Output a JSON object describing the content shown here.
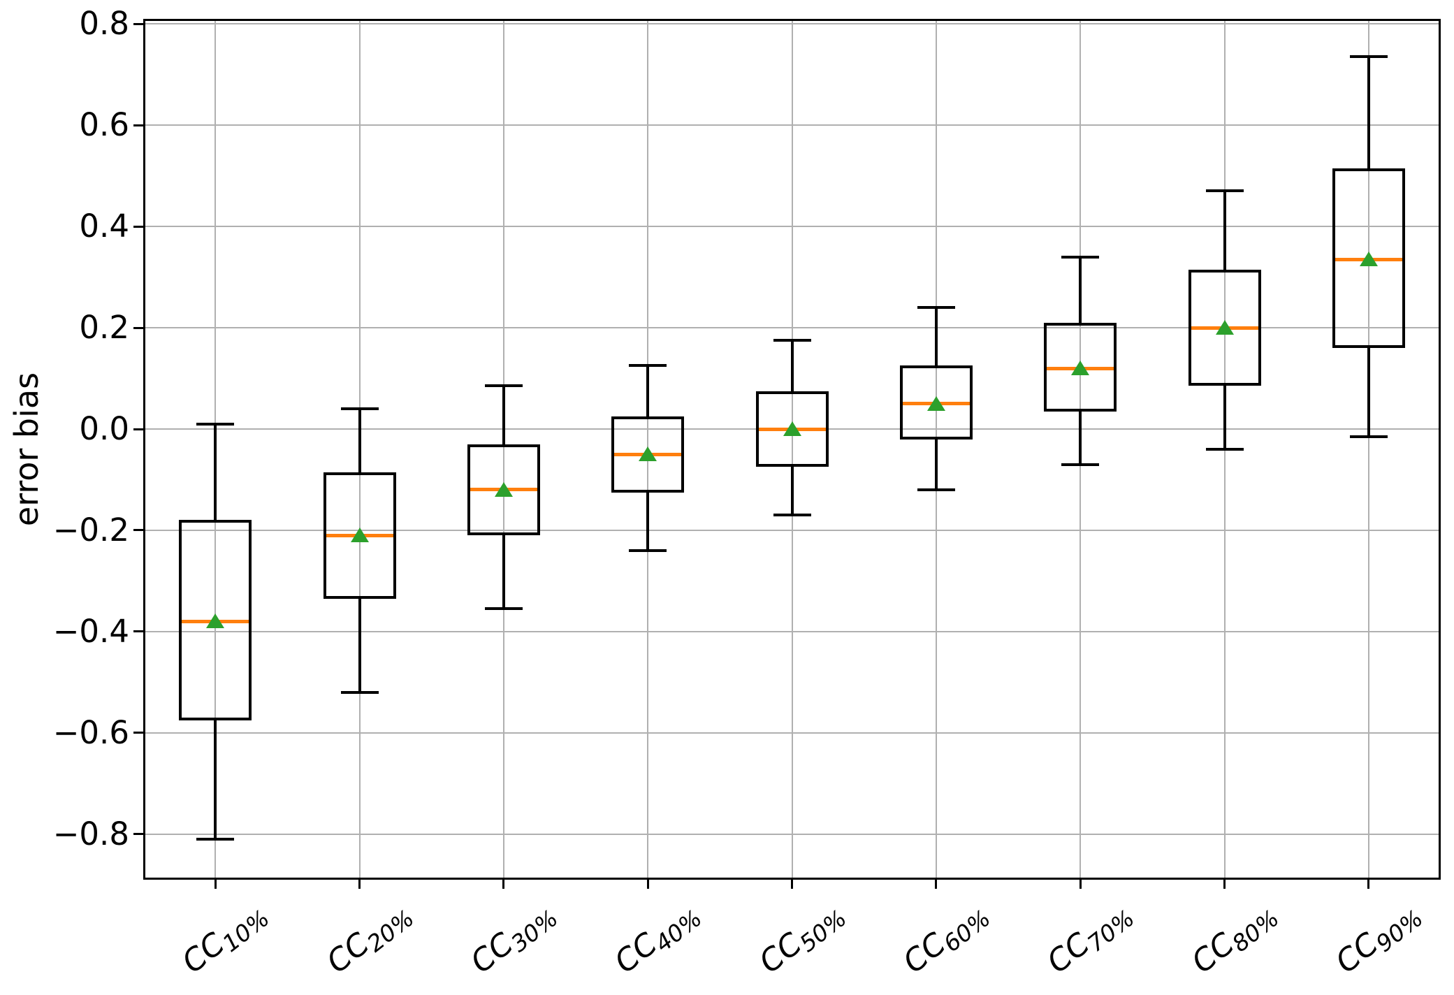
{
  "chart_data": {
    "type": "boxplot",
    "title": "",
    "xlabel": "",
    "ylabel": "error bias",
    "grid": true,
    "legend": "none",
    "ylim": [
      -0.89,
      0.81
    ],
    "yticks": [
      0.8,
      0.6,
      0.4,
      0.2,
      0.0,
      -0.2,
      -0.4,
      -0.6,
      -0.8
    ],
    "ytick_labels": [
      "0.8",
      "0.6",
      "0.4",
      "0.2",
      "0.0",
      "−0.2",
      "−0.4",
      "−0.6",
      "−0.8"
    ],
    "categories": [
      {
        "prefix": "CC",
        "sub": "10%"
      },
      {
        "prefix": "CC",
        "sub": "20%"
      },
      {
        "prefix": "CC",
        "sub": "30%"
      },
      {
        "prefix": "CC",
        "sub": "40%"
      },
      {
        "prefix": "CC",
        "sub": "50%"
      },
      {
        "prefix": "CC",
        "sub": "60%"
      },
      {
        "prefix": "CC",
        "sub": "70%"
      },
      {
        "prefix": "CC",
        "sub": "80%"
      },
      {
        "prefix": "CC",
        "sub": "90%"
      }
    ],
    "boxes": [
      {
        "label": "CC 10%",
        "whislo": -0.81,
        "q1": -0.575,
        "med": -0.38,
        "mean": -0.38,
        "q3": -0.18,
        "whishi": 0.01
      },
      {
        "label": "CC 20%",
        "whislo": -0.52,
        "q1": -0.335,
        "med": -0.21,
        "mean": -0.21,
        "q3": -0.085,
        "whishi": 0.04
      },
      {
        "label": "CC 30%",
        "whislo": -0.355,
        "q1": -0.21,
        "med": -0.12,
        "mean": -0.12,
        "q3": -0.03,
        "whishi": 0.085
      },
      {
        "label": "CC 40%",
        "whislo": -0.24,
        "q1": -0.125,
        "med": -0.05,
        "mean": -0.05,
        "q3": 0.025,
        "whishi": 0.125
      },
      {
        "label": "CC 50%",
        "whislo": -0.17,
        "q1": -0.075,
        "med": 0.0,
        "mean": 0.0,
        "q3": 0.075,
        "whishi": 0.175
      },
      {
        "label": "CC 60%",
        "whislo": -0.12,
        "q1": -0.02,
        "med": 0.05,
        "mean": 0.05,
        "q3": 0.125,
        "whishi": 0.24
      },
      {
        "label": "CC 70%",
        "whislo": -0.07,
        "q1": 0.035,
        "med": 0.12,
        "mean": 0.12,
        "q3": 0.21,
        "whishi": 0.34
      },
      {
        "label": "CC 80%",
        "whislo": -0.04,
        "q1": 0.085,
        "med": 0.2,
        "mean": 0.2,
        "q3": 0.315,
        "whishi": 0.47
      },
      {
        "label": "CC 90%",
        "whislo": -0.015,
        "q1": 0.16,
        "med": 0.335,
        "mean": 0.335,
        "q3": 0.515,
        "whishi": 0.735
      }
    ],
    "colors": {
      "box_edge": "#000000",
      "median": "#ff7f0e",
      "mean_marker": "#2ca02c",
      "grid": "#b0b0b0",
      "background": "#ffffff"
    }
  }
}
